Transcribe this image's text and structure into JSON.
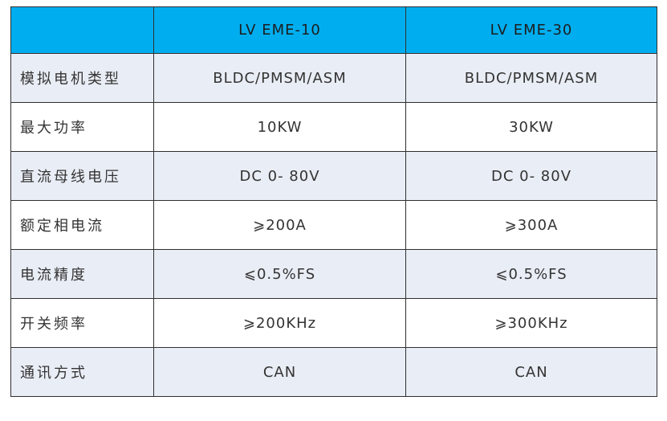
{
  "table": {
    "headers": [
      "",
      "LV EME-10",
      "LV EME-30"
    ],
    "rows": [
      {
        "label": "模拟电机类型",
        "a": "BLDC/PMSM/ASM",
        "b": "BLDC/PMSM/ASM"
      },
      {
        "label": "最大功率",
        "a": "10KW",
        "b": "30KW"
      },
      {
        "label": "直流母线电压",
        "a": "DC 0- 80V",
        "b": "DC 0- 80V"
      },
      {
        "label": "额定相电流",
        "a": "⩾200A",
        "b": "⩾300A"
      },
      {
        "label": "电流精度",
        "a": "⩽0.5%FS",
        "b": "⩽0.5%FS"
      },
      {
        "label": "开关频率",
        "a": "⩾200KHz",
        "b": "⩾300KHz"
      },
      {
        "label": "通讯方式",
        "a": "CAN",
        "b": "CAN"
      }
    ]
  },
  "colors": {
    "header_bg": "#00aeef",
    "row_alt_bg": "#e9edf5",
    "border": "#2f2f2f"
  }
}
